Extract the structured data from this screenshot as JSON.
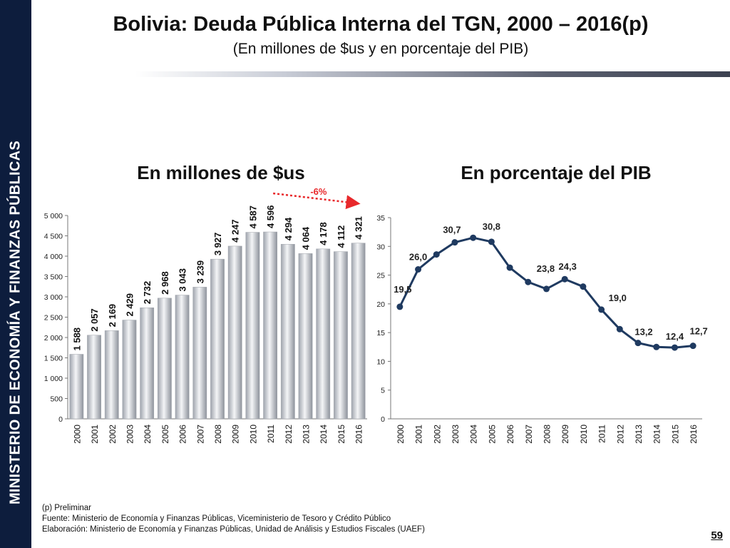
{
  "sidebar": {
    "text": "MINISTERIO DE ECONOMÍA Y FINANZAS PÚBLICAS"
  },
  "header": {
    "title": "Bolivia: Deuda Pública Interna del TGN, 2000 – 2016(p)",
    "subtitle": "(En millones de $us y en porcentaje del PIB)"
  },
  "chart_data": [
    {
      "type": "bar",
      "title": "En millones de $us",
      "categories": [
        "2000",
        "2001",
        "2002",
        "2003",
        "2004",
        "2005",
        "2006",
        "2007",
        "2008",
        "2009",
        "2010",
        "2011",
        "2012",
        "2013",
        "2014",
        "2015",
        "2016"
      ],
      "values": [
        1588,
        2057,
        2169,
        2429,
        2732,
        2968,
        3043,
        3239,
        3927,
        4247,
        4587,
        4596,
        4294,
        4064,
        4178,
        4112,
        4321
      ],
      "value_labels": [
        "1 588",
        "2 057",
        "2 169",
        "2 429",
        "2 732",
        "2 968",
        "3 043",
        "3 239",
        "3 927",
        "4 247",
        "4 587",
        "4 596",
        "4 294",
        "4 064",
        "4 178",
        "4 112",
        "4 321"
      ],
      "ylim": [
        0,
        5000
      ],
      "yticks": [
        0,
        500,
        1000,
        1500,
        2000,
        2500,
        3000,
        3500,
        4000,
        4500,
        5000
      ],
      "ytick_labels": [
        "0",
        "500",
        "1 000",
        "1 500",
        "2 000",
        "2 500",
        "3 000",
        "3 500",
        "4 000",
        "4 500",
        "5 000"
      ],
      "annotation": {
        "text": "-6%",
        "from": "2011",
        "to": "2016",
        "color": "#e8282b"
      },
      "bar_color": "#c9ccd3",
      "grid": false
    },
    {
      "type": "line",
      "title": "En porcentaje del PIB",
      "categories": [
        "2000",
        "2001",
        "2002",
        "2003",
        "2004",
        "2005",
        "2006",
        "2007",
        "2008",
        "2009",
        "2010",
        "2011",
        "2012",
        "2013",
        "2014",
        "2015",
        "2016"
      ],
      "values": [
        19.5,
        26.0,
        28.6,
        30.7,
        31.5,
        30.8,
        26.3,
        23.8,
        22.6,
        24.3,
        23.0,
        19.0,
        15.6,
        13.2,
        12.5,
        12.4,
        12.7
      ],
      "data_labels": [
        {
          "index": 0,
          "text": "19,5"
        },
        {
          "index": 1,
          "text": "26,0"
        },
        {
          "index": 3,
          "text": "30,7"
        },
        {
          "index": 5,
          "text": "30,8"
        },
        {
          "index": 7,
          "text": "23,8"
        },
        {
          "index": 9,
          "text": "24,3"
        },
        {
          "index": 11,
          "text": "19,0"
        },
        {
          "index": 13,
          "text": "13,2"
        },
        {
          "index": 15,
          "text": "12,4"
        },
        {
          "index": 16,
          "text": "12,7"
        }
      ],
      "ylim": [
        0,
        35
      ],
      "yticks": [
        0,
        5,
        10,
        15,
        20,
        25,
        30,
        35
      ],
      "ytick_labels": [
        "0",
        "5",
        "10",
        "15",
        "20",
        "25",
        "30",
        "35"
      ],
      "line_color": "#1f3a60",
      "grid": false
    }
  ],
  "footnotes": [
    "(p) Preliminar",
    "Fuente: Ministerio de Economía y Finanzas Públicas, Viceministerio de Tesoro y Crédito Público",
    "Elaboración: Ministerio de Economía y Finanzas Públicas, Unidad de Análisis y Estudios Fiscales (UAEF)"
  ],
  "page_number": "59"
}
